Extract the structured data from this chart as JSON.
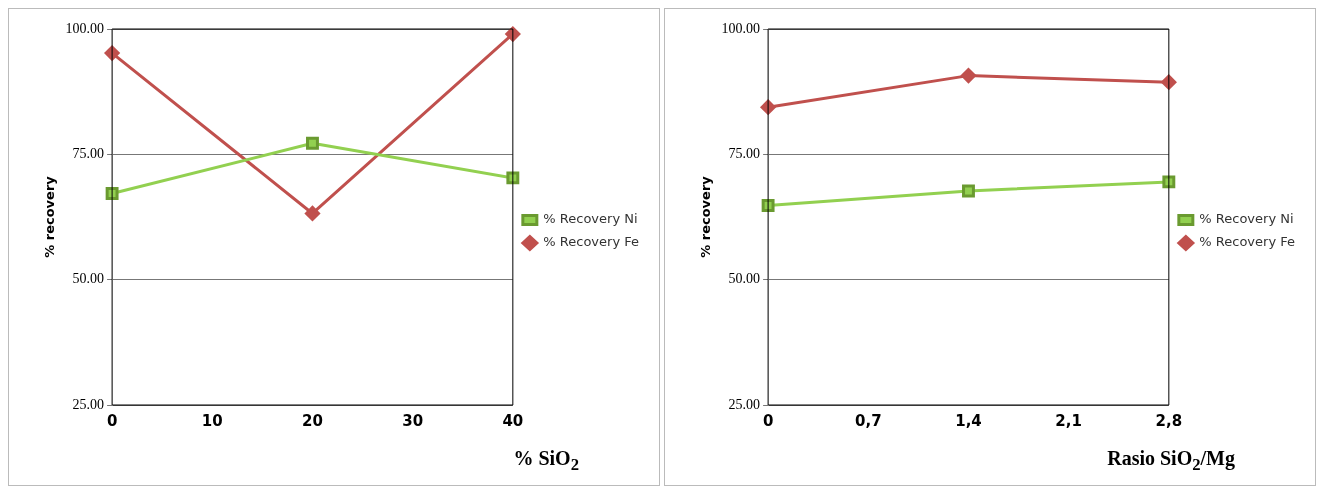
{
  "chart_data": [
    {
      "type": "line",
      "xlabel": "% SiO$_{2}$",
      "ylabel": "% recovery",
      "x": [
        0,
        20,
        40
      ],
      "xlim": [
        0,
        40
      ],
      "xticks": [
        0,
        10,
        20,
        30,
        40
      ],
      "ylim": [
        25,
        100
      ],
      "yticks": [
        {
          "value": 25,
          "label": "25.00"
        },
        {
          "value": 50,
          "label": "50.00"
        },
        {
          "value": 75,
          "label": "75.00"
        },
        {
          "value": 100,
          "label": "100.00"
        }
      ],
      "grid": "y",
      "legend": "right",
      "series": [
        {
          "name": "% Recovery Ni",
          "color": "#92d050",
          "marker": "square",
          "values": [
            67.2,
            77.2,
            70.3
          ]
        },
        {
          "name": "% Recovery Fe",
          "color": "#c0504d",
          "marker": "diamond",
          "values": [
            95.2,
            63.2,
            99.0
          ]
        }
      ]
    },
    {
      "type": "line",
      "xlabel": "Rasio SiO$_{2}$/Mg",
      "ylabel": "% recovery",
      "x": [
        0,
        1.4,
        2.8
      ],
      "xlim": [
        0,
        2.8
      ],
      "xticks": [
        0,
        {
          "value": 0.7,
          "label": "0,7"
        },
        {
          "value": 1.4,
          "label": "1,4"
        },
        {
          "value": 2.1,
          "label": "2,1"
        },
        {
          "value": 2.8,
          "label": "2,8"
        }
      ],
      "ylim": [
        25,
        100
      ],
      "yticks": [
        {
          "value": 25,
          "label": "25.00"
        },
        {
          "value": 50,
          "label": "50.00"
        },
        {
          "value": 75,
          "label": "75.00"
        },
        {
          "value": 100,
          "label": "100.00"
        }
      ],
      "grid": "y",
      "legend": "right",
      "series": [
        {
          "name": "% Recovery Ni",
          "color": "#92d050",
          "marker": "square",
          "values": [
            64.8,
            67.7,
            69.5
          ]
        },
        {
          "name": "% Recovery Fe",
          "color": "#c0504d",
          "marker": "diamond",
          "values": [
            84.4,
            90.7,
            89.4
          ]
        }
      ]
    }
  ]
}
